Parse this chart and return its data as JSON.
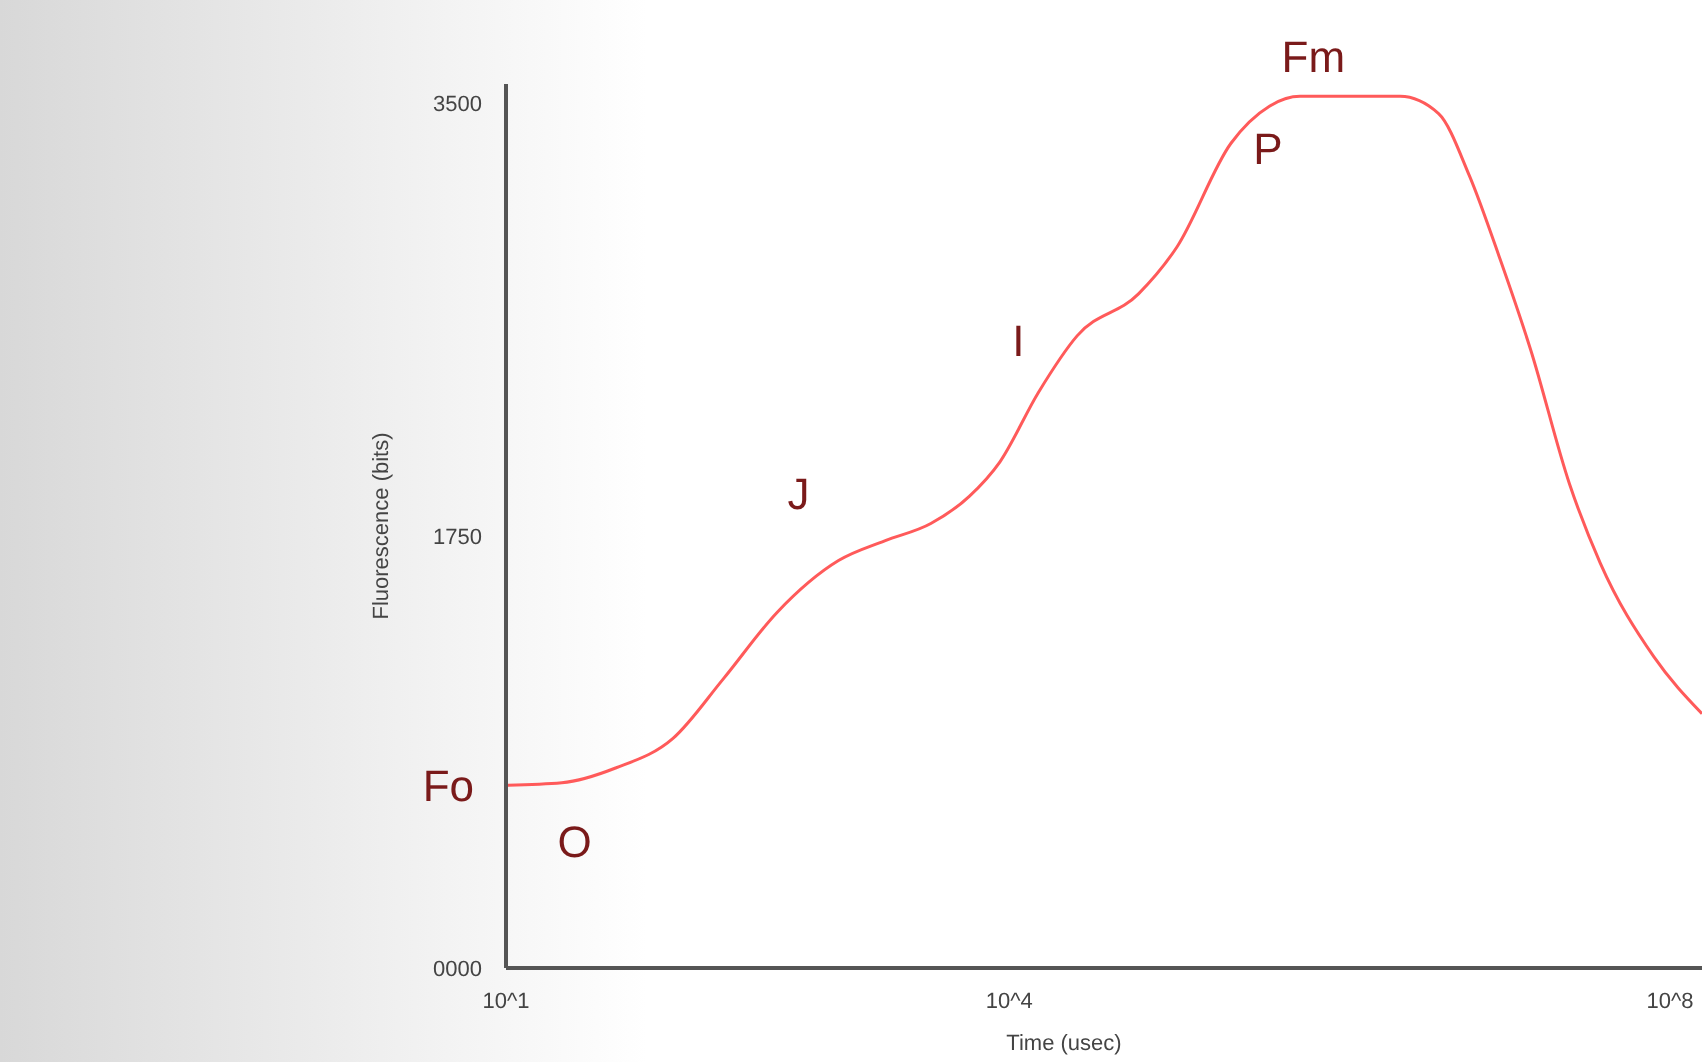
{
  "chart_data": {
    "type": "line",
    "xlabel": "Time (usec)",
    "ylabel": "Fluorescence (bits)",
    "log": "x",
    "xlim": [
      10,
      135000000
    ],
    "xticks": [
      {
        "value": 10,
        "label": "10^1"
      },
      {
        "value": 10000,
        "label": "10^4"
      },
      {
        "value": 100000000,
        "label": "10^8"
      }
    ],
    "ylim": [
      0,
      3580
    ],
    "yticks": [
      {
        "value": 0,
        "label": "0000"
      },
      1750,
      3500
    ],
    "grid": false,
    "marker": "none",
    "line_style": "solid",
    "x": [
      10,
      21.5,
      45,
      99,
      197,
      413,
      960,
      1810,
      3410,
      5780,
      8810,
      14900,
      25400,
      59000,
      100000,
      210000,
      356000,
      542000,
      2140000,
      3630000,
      5530000,
      8450000,
      12900000,
      21900000,
      33400000,
      69800000,
      135000000
    ],
    "series": [
      {
        "color": "#ff5a5a",
        "values": [
          740,
          750,
          810,
          930,
          1170,
          1440,
          1650,
          1730,
          1800,
          1910,
          2050,
          2330,
          2560,
          2730,
          2920,
          3340,
          3490,
          3530,
          3530,
          3460,
          3210,
          2870,
          2500,
          1960,
          1640,
          1260,
          1030
        ]
      }
    ],
    "annotations": [
      {
        "text": "Fo",
        "x": 10,
        "y": 740
      },
      {
        "text": "O",
        "x": 14,
        "y": 740
      },
      {
        "text": "J",
        "x": 960,
        "y": 1650
      },
      {
        "text": "I",
        "x": 12000,
        "y": 2300
      },
      {
        "text": "P",
        "x": 400000,
        "y": 3500
      },
      {
        "text": "Fm",
        "x": 650000,
        "y": 3530
      }
    ]
  }
}
